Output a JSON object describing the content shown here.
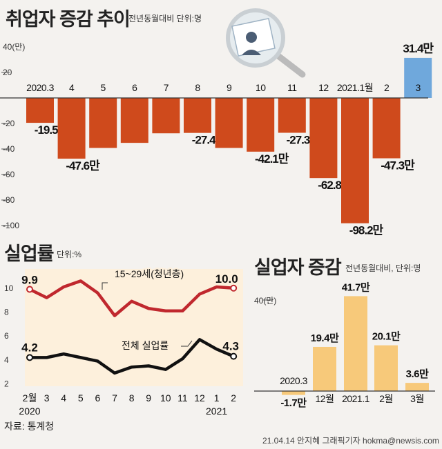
{
  "chart_data": [
    {
      "type": "bar",
      "title": "취업자 증감 추이",
      "unit": "전년동월대비 단위:명",
      "categories": [
        "2020.3",
        "4",
        "5",
        "6",
        "7",
        "8",
        "9",
        "10",
        "11",
        "12",
        "2021.1월",
        "2",
        "3"
      ],
      "values": [
        -19.5,
        -47.6,
        -39.2,
        -35.2,
        -27.7,
        -27.4,
        -39.2,
        -42.1,
        -27.3,
        -62.8,
        -98.2,
        -47.3,
        31.4
      ],
      "data_labels": [
        "-19.5만",
        "-47.6만",
        "",
        "",
        "",
        "-27.4만",
        "",
        "-42.1만",
        "-27.3만",
        "-62.8만",
        "-98.2만",
        "-47.3만",
        "31.4만"
      ],
      "yticks": [
        "40(만)",
        "20",
        "-20",
        "-40",
        "-60",
        "-80",
        "-100"
      ],
      "ylim": [
        -105,
        45
      ],
      "colors": {
        "negative": "#cf4a1c",
        "positive": "#6fa8dc"
      }
    },
    {
      "type": "line",
      "title": "실업률",
      "unit": "단위:%",
      "categories": [
        "2월",
        "3",
        "4",
        "5",
        "6",
        "7",
        "8",
        "9",
        "10",
        "11",
        "12",
        "1",
        "2"
      ],
      "year_labels": [
        "2020",
        "2021"
      ],
      "series": [
        {
          "name": "15~29세(청년층)",
          "values": [
            9.9,
            9.2,
            10.1,
            10.6,
            9.6,
            7.7,
            8.9,
            8.3,
            8.1,
            8.1,
            9.5,
            10.1,
            10.0
          ],
          "color": "#c0282e"
        },
        {
          "name": "전체 실업률",
          "values": [
            4.2,
            4.2,
            4.5,
            4.2,
            3.9,
            2.9,
            3.4,
            3.5,
            3.2,
            4.1,
            5.7,
            4.9,
            4.3
          ],
          "color": "#111111"
        }
      ],
      "end_labels": [
        "9.9",
        "10.0",
        "4.2",
        "4.3"
      ],
      "yticks": [
        "10",
        "8",
        "6",
        "4",
        "2"
      ],
      "ylim": [
        1.8,
        11.6
      ],
      "colors": {
        "fill": "#fdf0dc"
      }
    },
    {
      "type": "bar",
      "title": "실업자 증감",
      "unit": "전년동월대비, 단위:명",
      "categories": [
        "2020.3",
        "12월",
        "2021.1",
        "2월",
        "3월"
      ],
      "values": [
        -1.7,
        19.4,
        41.7,
        20.1,
        3.6
      ],
      "data_labels": [
        "-1.7만",
        "19.4만",
        "41.7만",
        "20.1만",
        "3.6만"
      ],
      "yticks": [
        "40(만)"
      ],
      "ylim": [
        -3,
        46
      ],
      "colors": {
        "bar": "#f7c97a"
      }
    }
  ],
  "source": "자료: 통계청",
  "credit": "21.04.14 안지혜 그래픽기자 hokma@newsis.com"
}
